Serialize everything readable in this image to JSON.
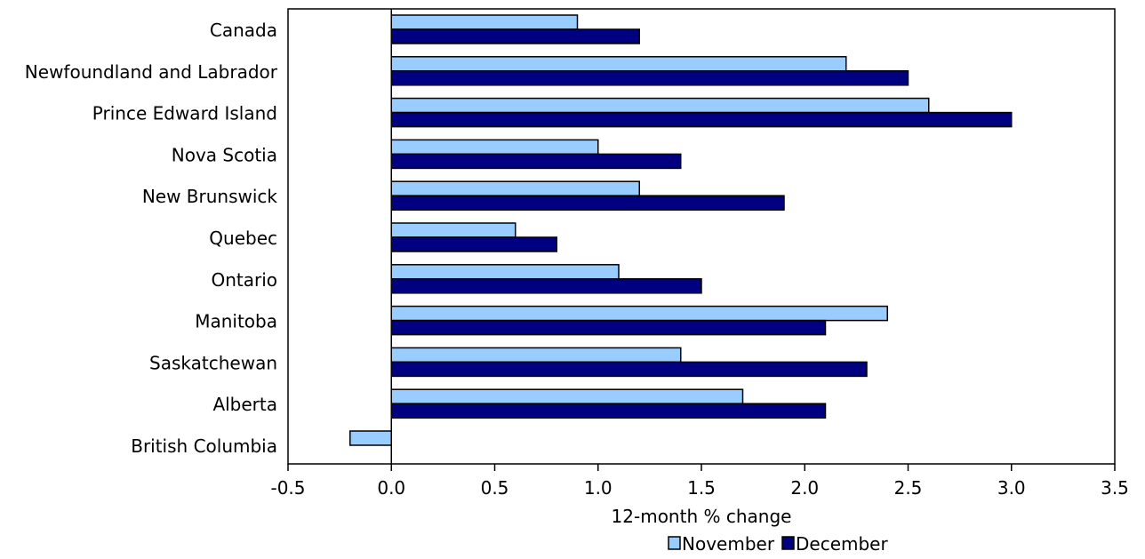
{
  "chart_data": {
    "type": "bar",
    "orientation": "horizontal",
    "title": "",
    "xlabel": "12-month % change",
    "ylabel": "",
    "xlim": [
      -0.5,
      3.5
    ],
    "x_ticks": [
      "-0.5",
      "0.0",
      "0.5",
      "1.0",
      "1.5",
      "2.0",
      "2.5",
      "3.0",
      "3.5"
    ],
    "grid": false,
    "legend_position": "bottom",
    "categories": [
      "Canada",
      "Newfoundland and Labrador",
      "Prince Edward Island",
      "Nova Scotia",
      "New  Brunswick",
      "Quebec",
      "Ontario",
      "Manitoba",
      "Saskatchewan",
      "Alberta",
      "British Columbia"
    ],
    "series": [
      {
        "name": "November",
        "color": "#99CCFF",
        "values": [
          0.9,
          2.2,
          2.6,
          1.0,
          1.2,
          0.6,
          1.1,
          2.4,
          1.4,
          1.7,
          -0.2
        ]
      },
      {
        "name": "December",
        "color": "#000080",
        "values": [
          1.2,
          2.5,
          3.0,
          1.4,
          1.9,
          0.8,
          1.5,
          2.1,
          2.3,
          2.1,
          0.0
        ]
      }
    ]
  }
}
